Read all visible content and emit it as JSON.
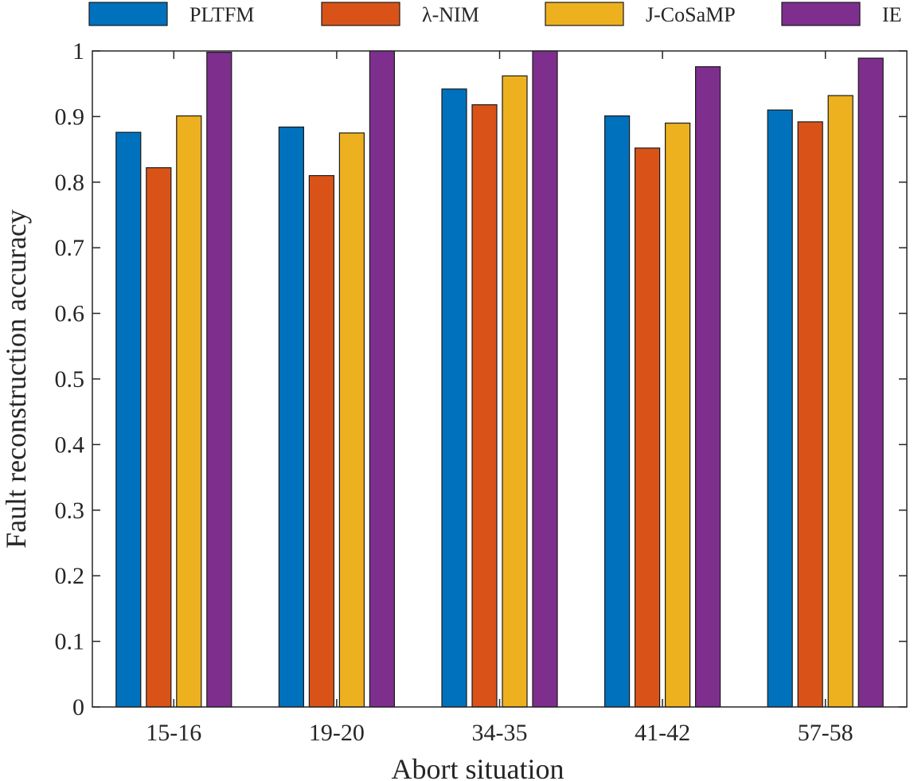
{
  "chart_data": {
    "type": "bar",
    "title": "",
    "xlabel": "Abort situation",
    "ylabel": "Fault reconstruction accuracy",
    "categories": [
      "15-16",
      "19-20",
      "34-35",
      "41-42",
      "57-58"
    ],
    "series": [
      {
        "name": "PLTFM",
        "color": "#0072BD",
        "values": [
          0.876,
          0.884,
          0.942,
          0.901,
          0.91
        ]
      },
      {
        "name": "λ-NIM",
        "color": "#D95319",
        "values": [
          0.822,
          0.81,
          0.918,
          0.852,
          0.892
        ]
      },
      {
        "name": "J-CoSaMP",
        "color": "#EDB120",
        "values": [
          0.901,
          0.875,
          0.962,
          0.89,
          0.932
        ]
      },
      {
        "name": "IE",
        "color": "#7E2F8E",
        "values": [
          0.998,
          1.0,
          1.0,
          0.976,
          0.989
        ]
      }
    ],
    "ylim": [
      0,
      1
    ],
    "yticks": [
      0,
      0.1,
      0.2,
      0.3,
      0.4,
      0.5,
      0.6,
      0.7,
      0.8,
      0.9,
      1
    ],
    "ytick_labels": [
      "0",
      "0.1",
      "0.2",
      "0.3",
      "0.4",
      "0.5",
      "0.6",
      "0.7",
      "0.8",
      "0.9",
      "1"
    ],
    "legend_position": "top",
    "grid": false
  }
}
